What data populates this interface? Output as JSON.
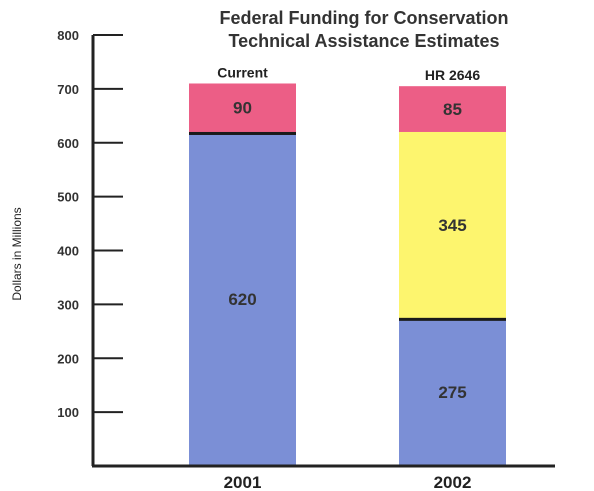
{
  "chart_data": {
    "type": "bar",
    "stacked": true,
    "title_lines": [
      "Federal Funding for Conservation",
      "Technical Assistance Estimates"
    ],
    "ylabel": "Dollars in Millions",
    "xlabel": "",
    "ylim": [
      0,
      800
    ],
    "yticks": [
      100,
      200,
      300,
      400,
      500,
      600,
      700,
      800
    ],
    "grid": false,
    "categories": [
      "2001",
      "2002"
    ],
    "bar_top_labels": [
      "Current",
      "HR 2646"
    ],
    "colors": {
      "blue": "#7b8fd6",
      "yellow": "#fdf56e",
      "pink": "#ec5e86",
      "separator": "#1a1a1a",
      "axis": "#222222"
    },
    "series": [
      {
        "values": [
          620,
          275
        ],
        "color": "#7b8fd6"
      },
      {
        "values": [
          0,
          345
        ],
        "color": "#fdf56e"
      },
      {
        "values": [
          90,
          85
        ],
        "color": "#ec5e86"
      }
    ]
  }
}
